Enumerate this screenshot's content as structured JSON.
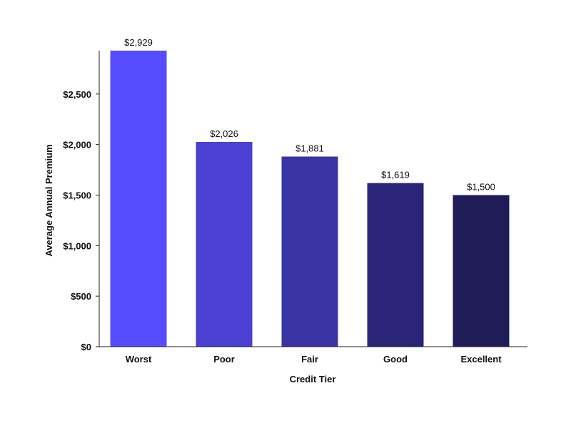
{
  "chart_data": {
    "type": "bar",
    "categories": [
      "Worst",
      "Poor",
      "Fair",
      "Good",
      "Excellent"
    ],
    "values": [
      2929,
      2026,
      1881,
      1619,
      1500
    ],
    "value_labels": [
      "$2,929",
      "$2,026",
      "$1,881",
      "$1,619",
      "$1,500"
    ],
    "bar_colors": [
      "#574cff",
      "#4a40d1",
      "#3a33a3",
      "#2a2578",
      "#201c57"
    ],
    "xlabel": "Credit Tier",
    "ylabel": "Average Annual Premium",
    "ylim": [
      0,
      2929
    ],
    "yticks": [
      0,
      500,
      1000,
      1500,
      2000,
      2500
    ],
    "ytick_labels": [
      "$0",
      "$500",
      "$1,000",
      "$1,500",
      "$2,000",
      "$2,500"
    ],
    "grid": false,
    "legend": "none"
  }
}
